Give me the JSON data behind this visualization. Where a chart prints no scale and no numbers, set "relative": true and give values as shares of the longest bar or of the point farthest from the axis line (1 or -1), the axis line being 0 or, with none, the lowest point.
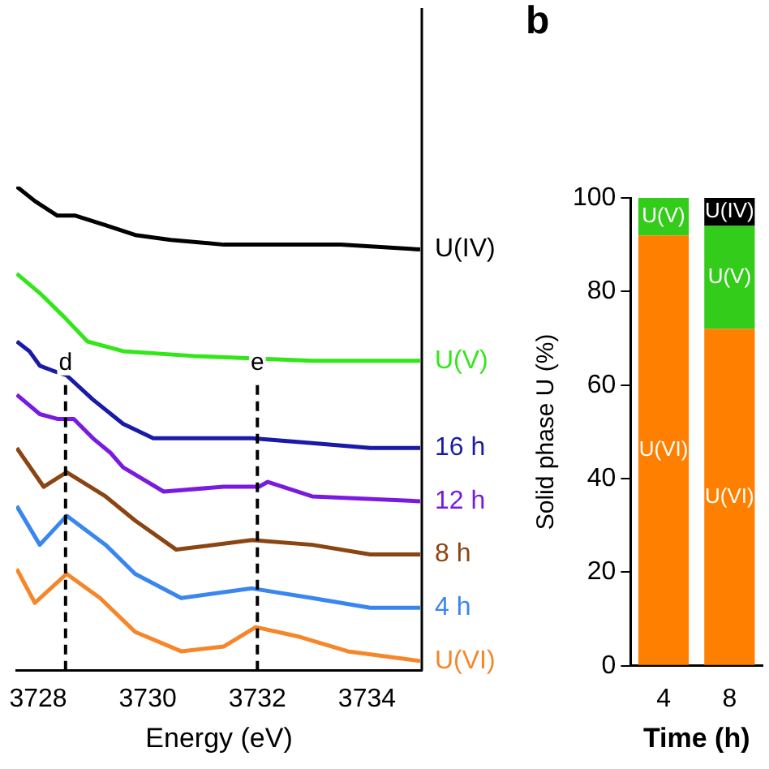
{
  "chart_data": [
    {
      "type": "line",
      "xlabel": "Energy (eV)",
      "relative": true,
      "xlim": [
        3727.6,
        3735
      ],
      "xticks": [
        3728,
        3730,
        3732,
        3734
      ],
      "ref_lines": [
        {
          "axis": "x",
          "value": 3728.5,
          "label": "d",
          "color": "#000000",
          "line_style": "dashed"
        },
        {
          "axis": "x",
          "value": 3732,
          "label": "e",
          "color": "#000000",
          "line_style": "dashed"
        }
      ],
      "series": [
        {
          "name": "U(IV)",
          "color": "#000000",
          "x": [
            3727.61,
            3727.94,
            3728.35,
            3728.68,
            3729.23,
            3729.77,
            3730.42,
            3731.39,
            3732.45,
            3733.52,
            3734.97
          ],
          "values": [
            1.0,
            0.97,
            0.94,
            0.94,
            0.92,
            0.9,
            0.89,
            0.88,
            0.88,
            0.88,
            0.87
          ]
        },
        {
          "name": "U(V)",
          "color": "#33e61a",
          "x": [
            3727.61,
            3728.03,
            3728.48,
            3728.9,
            3729.55,
            3730.84,
            3733.0,
            3734.97
          ],
          "values": [
            0.82,
            0.78,
            0.73,
            0.68,
            0.66,
            0.65,
            0.64,
            0.64
          ]
        },
        {
          "name": "16 h",
          "color": "#1a1aa8",
          "x": [
            3727.61,
            3727.84,
            3728.03,
            3728.26,
            3728.52,
            3729.0,
            3729.55,
            3730.1,
            3730.84,
            3731.9,
            3733.0,
            3734.06,
            3734.97
          ],
          "values": [
            0.68,
            0.66,
            0.63,
            0.62,
            0.61,
            0.56,
            0.51,
            0.48,
            0.48,
            0.48,
            0.47,
            0.46,
            0.46
          ]
        },
        {
          "name": "12 h",
          "color": "#7a1ae0",
          "x": [
            3727.61,
            3728.03,
            3728.35,
            3728.65,
            3729.0,
            3729.32,
            3729.55,
            3730.29,
            3731.39,
            3732.03,
            3732.19,
            3733.0,
            3734.97
          ],
          "values": [
            0.57,
            0.53,
            0.52,
            0.52,
            0.48,
            0.45,
            0.42,
            0.37,
            0.38,
            0.38,
            0.39,
            0.36,
            0.35
          ]
        },
        {
          "name": "8 h",
          "color": "#8b4513",
          "x": [
            3727.61,
            3728.1,
            3728.52,
            3729.23,
            3729.77,
            3730.52,
            3731.9,
            3733.0,
            3734.06,
            3734.97
          ],
          "values": [
            0.46,
            0.38,
            0.41,
            0.36,
            0.31,
            0.25,
            0.27,
            0.26,
            0.24,
            0.24
          ]
        },
        {
          "name": "4 h",
          "color": "#3a86f0",
          "x": [
            3727.61,
            3728.03,
            3728.52,
            3729.23,
            3729.77,
            3730.61,
            3731.9,
            3733.0,
            3734.06,
            3734.97
          ],
          "values": [
            0.34,
            0.26,
            0.32,
            0.26,
            0.2,
            0.15,
            0.17,
            0.15,
            0.13,
            0.13
          ]
        },
        {
          "name": "U(VI)",
          "color": "#f5862a",
          "x": [
            3727.61,
            3727.94,
            3728.52,
            3729.13,
            3729.77,
            3730.61,
            3731.39,
            3731.97,
            3732.77,
            3733.65,
            3734.97
          ],
          "values": [
            0.21,
            0.14,
            0.2,
            0.15,
            0.08,
            0.04,
            0.05,
            0.09,
            0.07,
            0.04,
            0.02
          ]
        }
      ]
    },
    {
      "type": "bar",
      "stacked": true,
      "categories": [
        "4",
        "8"
      ],
      "ylabel": "Solid phase U (%)",
      "xlabel": "Time (h)",
      "ylim": [
        0,
        100
      ],
      "yticks": [
        0,
        20,
        40,
        60,
        80,
        100
      ],
      "annotations": [
        "b"
      ],
      "series": [
        {
          "name": "U(VI)",
          "color": "#ff7f00",
          "values": [
            92,
            72
          ]
        },
        {
          "name": "U(V)",
          "color": "#33cc1a",
          "values": [
            8,
            22
          ]
        },
        {
          "name": "U(IV)",
          "color": "#000000",
          "values": [
            null,
            6
          ]
        }
      ]
    }
  ]
}
